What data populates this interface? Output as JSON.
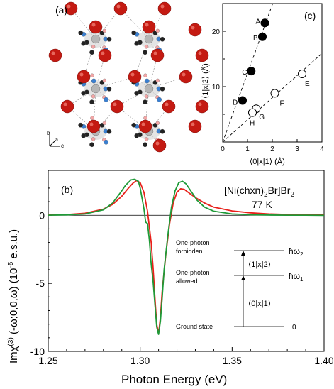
{
  "panel_a": {
    "label": "(a)",
    "axis_labels": [
      "b",
      "a",
      "c"
    ]
  },
  "panel_c": {
    "label": "(c)",
    "xlabel": "⟨0|x|1⟩ (Å)",
    "ylabel": "⟨1|x|2⟩ (Å)",
    "xticks": [
      "0",
      "1",
      "2",
      "3",
      "4"
    ],
    "yticks": [
      "10",
      "20"
    ]
  },
  "panel_b": {
    "label": "(b)",
    "compound_main": "[Ni(chxn)",
    "compound_sub1": "2",
    "compound_mid": "Br]Br",
    "compound_sub2": "2",
    "temperature": "77 K",
    "xlabel": "Photon Energy (eV)",
    "ylabel_pre": "Imχ",
    "ylabel_sup": "(3)",
    "ylabel_mid": " (-ω;0,0,ω) (10",
    "ylabel_sup2": "-5",
    "ylabel_post": " e.s.u.)",
    "xticks": [
      "1.25",
      "1.30",
      "1.35",
      "1.40"
    ],
    "yticks": [
      "0",
      "-5",
      "-10"
    ],
    "diagram": {
      "one_photon_forbidden_1": "One-photon",
      "one_photon_forbidden_2": "forbidden",
      "one_photon_allowed_1": "One-photon",
      "one_photon_allowed_2": "allowed",
      "ground_state": "Ground state",
      "level2": "ħω",
      "level2_sub": "2",
      "level1": "ħω",
      "level1_sub": "1",
      "level0": "0",
      "matrix_12": "⟨1|x|2⟩",
      "matrix_01": "⟨0|x|1⟩"
    }
  },
  "chart_data": [
    {
      "type": "scatter",
      "xlim": [
        0,
        4
      ],
      "ylim": [
        0,
        25
      ],
      "xticks": [
        0,
        1,
        2,
        3,
        4
      ],
      "yticks": [
        10,
        20
      ],
      "series": [
        {
          "filled": true,
          "color": "#000000",
          "points": [
            {
              "label": "A",
              "x": 1.7,
              "y": 21.5
            },
            {
              "label": "B",
              "x": 1.6,
              "y": 19.0
            },
            {
              "label": "C",
              "x": 1.15,
              "y": 12.8
            },
            {
              "label": "D",
              "x": 0.8,
              "y": 7.5
            }
          ]
        },
        {
          "filled": false,
          "color": "#000000",
          "points": [
            {
              "label": "E",
              "x": 3.2,
              "y": 12.3
            },
            {
              "label": "F",
              "x": 2.1,
              "y": 8.8
            },
            {
              "label": "G",
              "x": 1.35,
              "y": 6.0
            },
            {
              "label": "H",
              "x": 1.2,
              "y": 5.3
            }
          ]
        }
      ],
      "fit_lines": [
        {
          "slope": 12.4,
          "style": "dashed"
        },
        {
          "slope": 4.0,
          "style": "dashed"
        }
      ]
    },
    {
      "type": "line",
      "xlim": [
        1.25,
        1.4
      ],
      "ylim": [
        -10,
        3.3
      ],
      "xticks": [
        1.25,
        1.3,
        1.35,
        1.4
      ],
      "yticks": [
        0,
        -5,
        -10
      ],
      "series": [
        {
          "color": "#e8201a",
          "x": [
            1.25,
            1.26,
            1.27,
            1.28,
            1.285,
            1.29,
            1.293,
            1.296,
            1.298,
            1.3,
            1.302,
            1.304,
            1.306,
            1.307,
            1.308,
            1.309,
            1.31,
            1.311,
            1.312,
            1.314,
            1.316,
            1.318,
            1.32,
            1.322,
            1.324,
            1.327,
            1.33,
            1.335,
            1.34,
            1.35,
            1.36,
            1.37,
            1.38,
            1.39,
            1.4
          ],
          "y": [
            0.02,
            0.05,
            0.15,
            0.45,
            0.8,
            1.4,
            1.9,
            2.35,
            2.55,
            2.4,
            1.7,
            0.3,
            -2.0,
            -3.8,
            -6.0,
            -8.0,
            -8.7,
            -7.5,
            -5.5,
            -2.8,
            -0.6,
            0.9,
            1.7,
            1.95,
            1.9,
            1.6,
            1.3,
            0.9,
            0.6,
            0.32,
            0.18,
            0.1,
            0.06,
            0.03,
            0.02
          ]
        },
        {
          "color": "#1f9a38",
          "x": [
            1.25,
            1.26,
            1.27,
            1.28,
            1.285,
            1.29,
            1.292,
            1.295,
            1.297,
            1.299,
            1.3,
            1.302,
            1.303,
            1.304,
            1.305,
            1.306,
            1.307,
            1.308,
            1.309,
            1.31,
            1.311,
            1.312,
            1.313,
            1.315,
            1.317,
            1.319,
            1.321,
            1.323,
            1.325,
            1.328,
            1.331,
            1.335,
            1.34,
            1.35,
            1.36,
            1.37,
            1.38,
            1.39,
            1.4
          ],
          "y": [
            0.01,
            0.03,
            0.1,
            0.4,
            0.9,
            1.8,
            2.2,
            2.6,
            2.65,
            2.5,
            2.0,
            0.5,
            -0.5,
            -0.6,
            -1.8,
            -3.6,
            -4.8,
            -6.5,
            -8.2,
            -8.75,
            -7.8,
            -6.0,
            -4.0,
            -1.5,
            0.6,
            1.8,
            2.4,
            2.5,
            2.3,
            1.7,
            1.1,
            0.6,
            0.3,
            0.1,
            0.04,
            0.02,
            0.01,
            0.01,
            0.0
          ]
        }
      ]
    }
  ]
}
